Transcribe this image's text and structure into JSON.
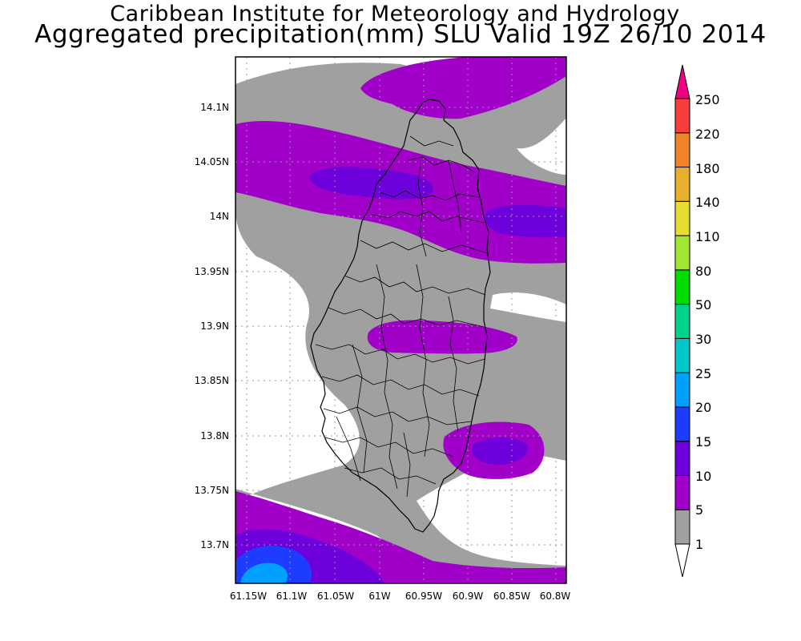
{
  "title": "Caribbean Institute for Meteorology and Hydrology",
  "subtitle": "Aggregated precipitation(mm) SLU Valid 19Z 26/10 2014",
  "map": {
    "region": "Saint Lucia",
    "lat_range": [
      13.664,
      14.144
    ],
    "lon_range": [
      -61.165,
      -60.79
    ],
    "grid": true,
    "lat_labels": [
      "14.1N",
      "14.05N",
      "14N",
      "13.95N",
      "13.9N",
      "13.85N",
      "13.8N",
      "13.75N",
      "13.7N"
    ],
    "lon_labels": [
      "61.15W",
      "61.1W",
      "61.05W",
      "61W",
      "60.95W",
      "60.9W",
      "60.85W",
      "60.8W"
    ]
  },
  "colorbar": {
    "levels": [
      "1",
      "5",
      "10",
      "15",
      "20",
      "25",
      "30",
      "50",
      "80",
      "110",
      "140",
      "180",
      "220",
      "250"
    ],
    "colors": [
      "#a0a0a0",
      "#a000c8",
      "#6e00dc",
      "#1e3cff",
      "#00a0ff",
      "#00c8c8",
      "#00d28c",
      "#00dc00",
      "#a0e632",
      "#e6dc32",
      "#e6af2d",
      "#f08228",
      "#fa3c3c",
      "#f00082"
    ],
    "under_color": "#ffffff",
    "over_color": "#f00082"
  },
  "colors": {
    "gray": "#a0a0a0",
    "purple": "#a000c8",
    "dark_purple": "#6e00dc",
    "blue": "#1e3cff",
    "light_blue": "#00a0ff"
  }
}
